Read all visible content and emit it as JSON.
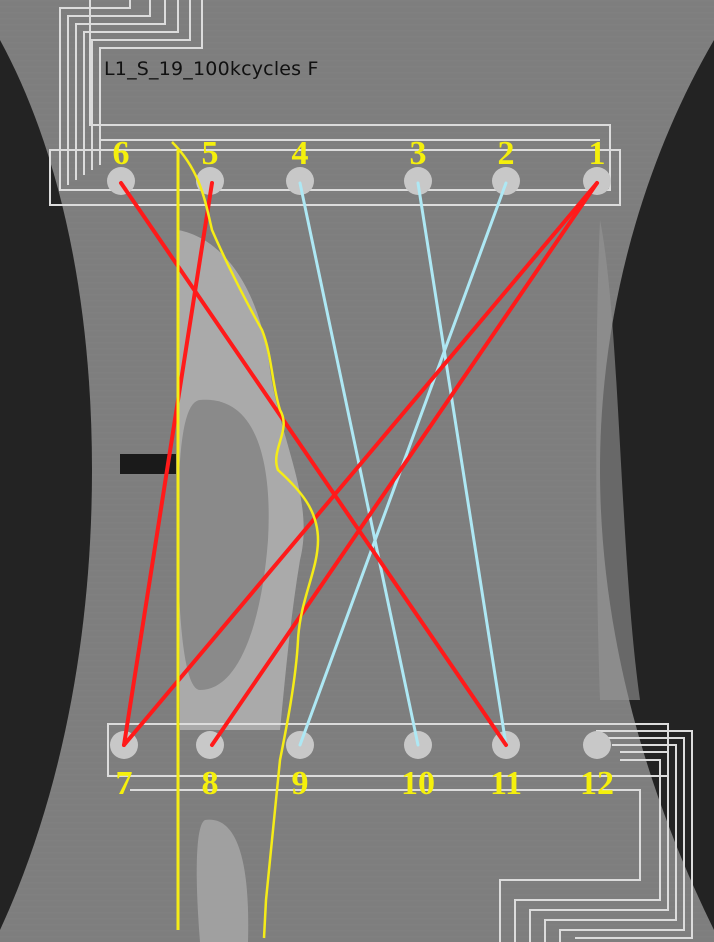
{
  "image": {
    "caption": "L1_S_19_100kcycles F"
  },
  "colors": {
    "background_dark": "#232323",
    "specimen": "#7e7e7e",
    "specimen_light": "#969696",
    "damage_zone": "#b4b4b4",
    "electrode": "#c8c8c8",
    "trace": "#dcdcdc",
    "label": "#f5f00c",
    "red_path": "#ff1a1a",
    "blue_path": "#aee8f4",
    "yellow_line": "#f5ec17"
  },
  "electrodes": {
    "top": [
      {
        "label": "6"
      },
      {
        "label": "5"
      },
      {
        "label": "4"
      },
      {
        "label": "3"
      },
      {
        "label": "2"
      },
      {
        "label": "1"
      }
    ],
    "bottom": [
      {
        "label": "7"
      },
      {
        "label": "8"
      },
      {
        "label": "9"
      },
      {
        "label": "10"
      },
      {
        "label": "11"
      },
      {
        "label": "12"
      }
    ]
  },
  "measurement_paths": {
    "red": [
      {
        "from": "6",
        "to": "11"
      },
      {
        "from": "5",
        "to": "7"
      },
      {
        "from": "1",
        "to": "7"
      },
      {
        "from": "1",
        "to": "8"
      }
    ],
    "light_blue": [
      {
        "from": "4",
        "to": "10"
      },
      {
        "from": "3",
        "to": "11"
      },
      {
        "from": "2",
        "to": "9"
      }
    ]
  }
}
